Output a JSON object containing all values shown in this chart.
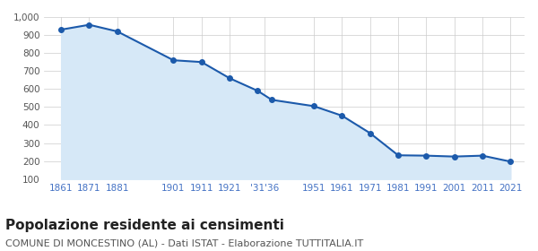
{
  "years": [
    1861,
    1871,
    1881,
    1901,
    1911,
    1921,
    1931,
    1936,
    1951,
    1961,
    1971,
    1981,
    1991,
    2001,
    2011,
    2021
  ],
  "x_labels": [
    "1861",
    "1871",
    "1881",
    "1901",
    "1911",
    "1921",
    "'31'36",
    "1951",
    "1961",
    "1971",
    "1981",
    "1991",
    "2001",
    "2011",
    "2021"
  ],
  "x_positions": [
    1861,
    1871,
    1881,
    1901,
    1911,
    1921,
    1933.5,
    1951,
    1961,
    1971,
    1981,
    1991,
    2001,
    2011,
    2021
  ],
  "population": [
    930,
    957,
    920,
    760,
    750,
    660,
    590,
    540,
    505,
    452,
    355,
    232,
    230,
    225,
    230,
    197
  ],
  "ylim": [
    100,
    1000
  ],
  "yticks": [
    100,
    200,
    300,
    400,
    500,
    600,
    700,
    800,
    900,
    "1,000"
  ],
  "ytick_values": [
    100,
    200,
    300,
    400,
    500,
    600,
    700,
    800,
    900,
    1000
  ],
  "line_color": "#1c5aab",
  "fill_color": "#d6e8f7",
  "marker_color": "#1c5aab",
  "grid_color": "#cccccc",
  "background_color": "#ffffff",
  "title": "Popolazione residente ai censimenti",
  "subtitle": "COMUNE DI MONCESTINO (AL) - Dati ISTAT - Elaborazione TUTTITALIA.IT",
  "title_fontsize": 11,
  "subtitle_fontsize": 8,
  "xlabel_color": "#4472c4",
  "xlabel_fontsize": 7.5
}
